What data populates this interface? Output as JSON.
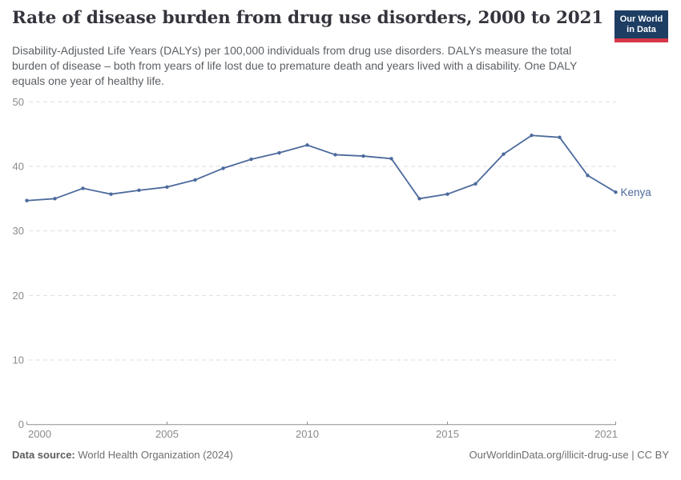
{
  "header": {
    "title": "Rate of disease burden from drug use disorders, 2000 to 2021",
    "subtitle": "Disability-Adjusted Life Years (DALYs) per 100,000 individuals from drug use disorders. DALYs measure the total burden of disease – both from years of life lost due to premature death and years lived with a disability. One DALY equals one year of healthy life.",
    "logo": {
      "line1": "Our World",
      "line2": "in Data",
      "bg_color": "#1d3d63",
      "accent_color": "#d73747"
    }
  },
  "chart_data": {
    "type": "line",
    "title": "Rate of disease burden from drug use disorders, 2000 to 2021",
    "x": [
      2000,
      2001,
      2002,
      2003,
      2004,
      2005,
      2006,
      2007,
      2008,
      2009,
      2010,
      2011,
      2012,
      2013,
      2014,
      2015,
      2016,
      2017,
      2018,
      2019,
      2020,
      2021
    ],
    "series": [
      {
        "name": "Kenya",
        "color": "#4c6a9c",
        "values": [
          34.7,
          35.0,
          36.6,
          35.7,
          36.3,
          36.8,
          37.9,
          39.7,
          41.1,
          42.1,
          43.3,
          41.8,
          41.6,
          41.2,
          35.0,
          35.7,
          37.3,
          41.9,
          44.8,
          44.5,
          38.6,
          36.0
        ]
      }
    ],
    "xlabel": "",
    "ylabel": "",
    "ylim": [
      0,
      50
    ],
    "yticks": [
      0,
      10,
      20,
      30,
      40,
      50
    ],
    "xticks": [
      2000,
      2005,
      2010,
      2015,
      2021
    ],
    "grid": "horizontal-dashed",
    "legend": "line-end-label"
  },
  "footer": {
    "data_source_label": "Data source:",
    "data_source_value": "World Health Organization (2024)",
    "link_text": "OurWorldinData.org/illicit-drug-use | CC BY"
  },
  "colors": {
    "grid": "#dedede",
    "axis": "#8f8f8f",
    "tick_label": "#8a8a8a"
  }
}
